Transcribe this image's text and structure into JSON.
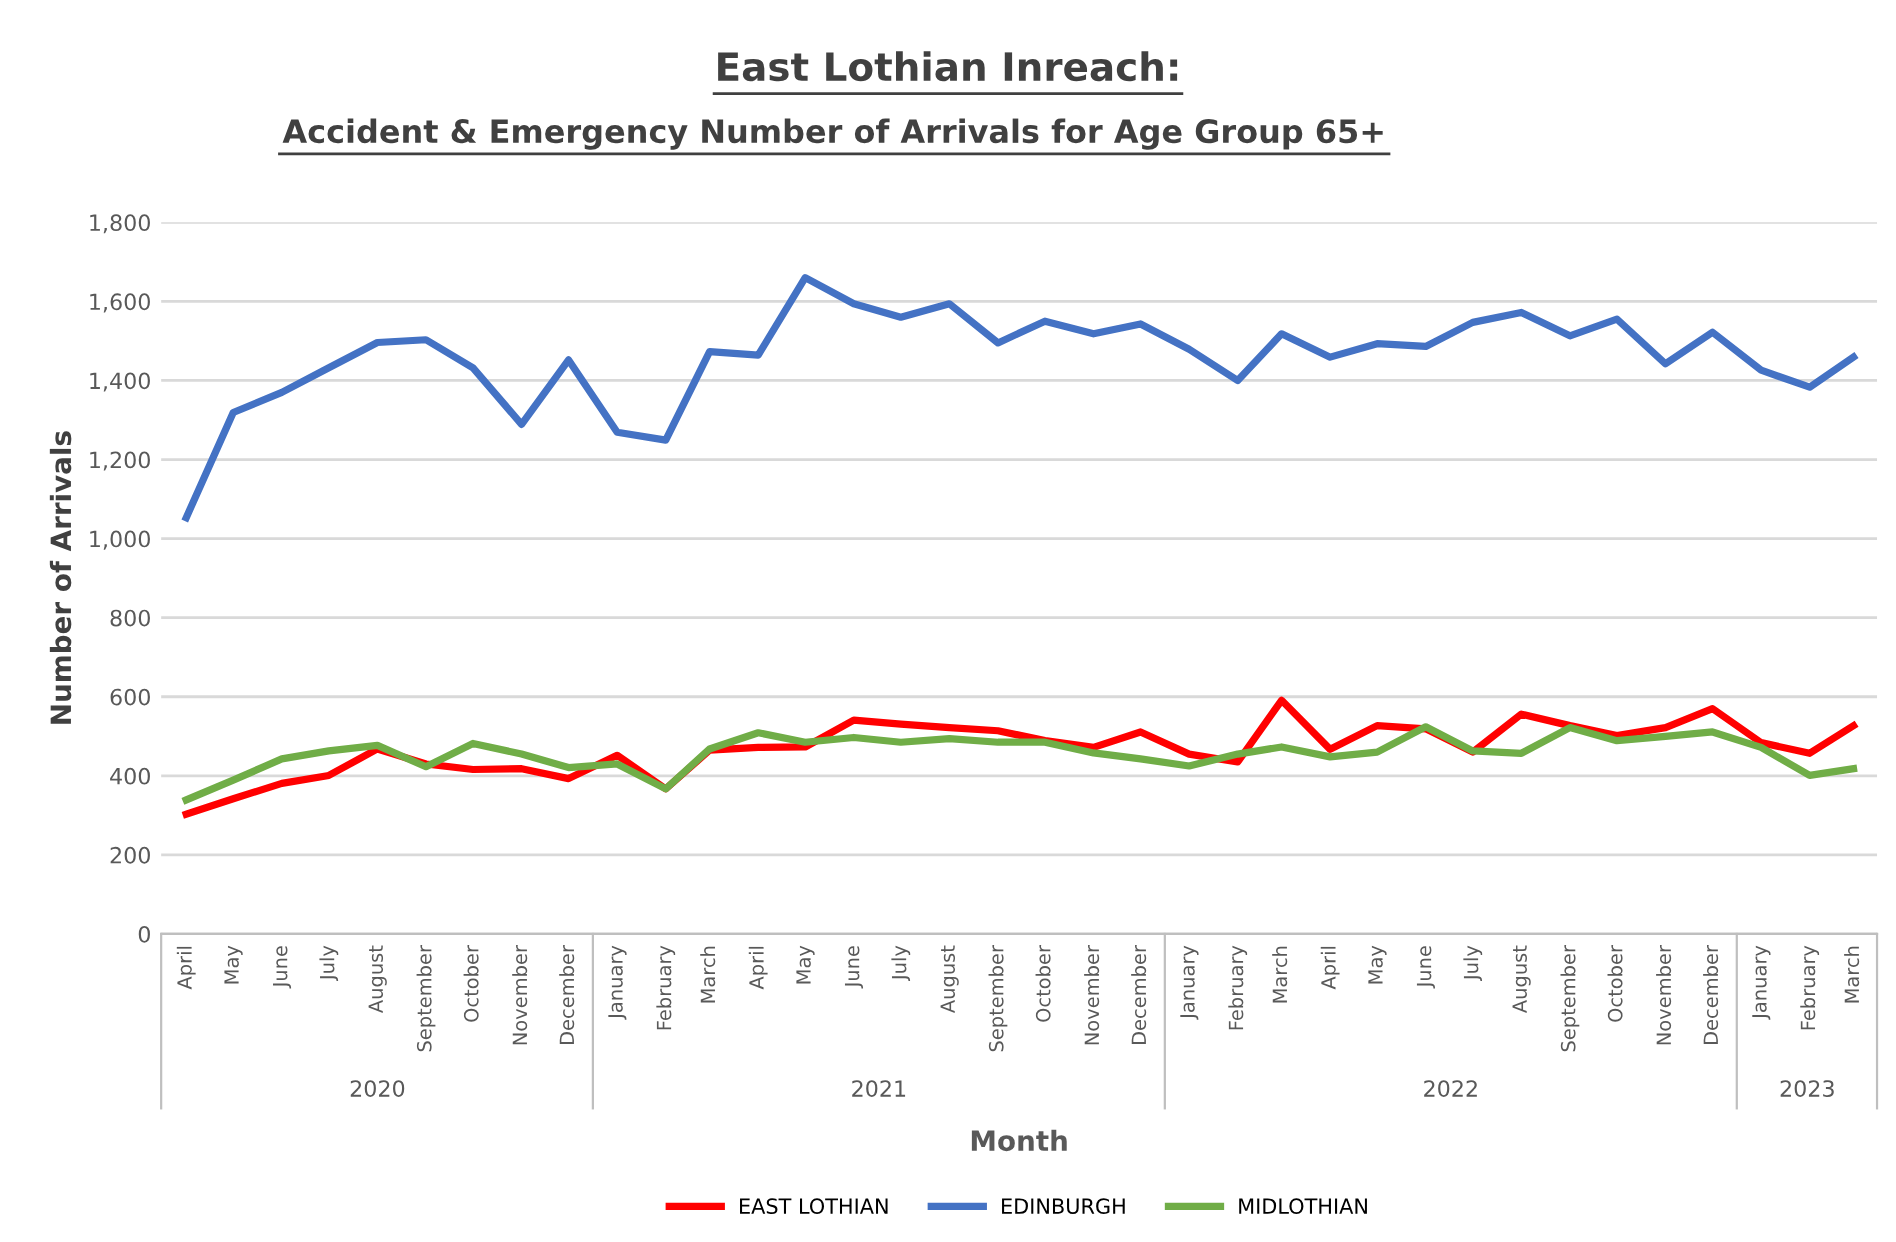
{
  "chart_data": {
    "type": "line",
    "title": "East Lothian Inreach:",
    "subtitle": "Accident & Emergency Number of Arrivals for Age Group 65+",
    "xlabel": "Month",
    "ylabel": "Number of Arrivals",
    "x": [
      "2020-04",
      "2020-05",
      "2020-06",
      "2020-07",
      "2020-08",
      "2020-09",
      "2020-10",
      "2020-11",
      "2020-12",
      "2021-01",
      "2021-02",
      "2021-03",
      "2021-04",
      "2021-05",
      "2021-06",
      "2021-07",
      "2021-08",
      "2021-09",
      "2021-10",
      "2021-11",
      "2021-12",
      "2022-01",
      "2022-02",
      "2022-03",
      "2022-04",
      "2022-05",
      "2022-06",
      "2022-07",
      "2022-08",
      "2022-09",
      "2022-10",
      "2022-11",
      "2022-12",
      "2023-01",
      "2023-02",
      "2023-03"
    ],
    "xlim": [
      "2020-03-16",
      "2023-03-16"
    ],
    "xticks": [
      {
        "value": "2020-04",
        "label": "April"
      },
      {
        "value": "2020-05",
        "label": "May"
      },
      {
        "value": "2020-06",
        "label": "June"
      },
      {
        "value": "2020-07",
        "label": "July"
      },
      {
        "value": "2020-08",
        "label": "August"
      },
      {
        "value": "2020-09",
        "label": "September"
      },
      {
        "value": "2020-10",
        "label": "October"
      },
      {
        "value": "2020-11",
        "label": "November"
      },
      {
        "value": "2020-12",
        "label": "December"
      },
      {
        "value": "2021-01",
        "label": "January"
      },
      {
        "value": "2021-02",
        "label": "February"
      },
      {
        "value": "2021-03",
        "label": "March"
      },
      {
        "value": "2021-04",
        "label": "April"
      },
      {
        "value": "2021-05",
        "label": "May"
      },
      {
        "value": "2021-06",
        "label": "June"
      },
      {
        "value": "2021-07",
        "label": "July"
      },
      {
        "value": "2021-08",
        "label": "August"
      },
      {
        "value": "2021-09",
        "label": "September"
      },
      {
        "value": "2021-10",
        "label": "October"
      },
      {
        "value": "2021-11",
        "label": "November"
      },
      {
        "value": "2021-12",
        "label": "December"
      },
      {
        "value": "2022-01",
        "label": "January"
      },
      {
        "value": "2022-02",
        "label": "February"
      },
      {
        "value": "2022-03",
        "label": "March"
      },
      {
        "value": "2022-04",
        "label": "April"
      },
      {
        "value": "2022-05",
        "label": "May"
      },
      {
        "value": "2022-06",
        "label": "June"
      },
      {
        "value": "2022-07",
        "label": "July"
      },
      {
        "value": "2022-08",
        "label": "August"
      },
      {
        "value": "2022-09",
        "label": "September"
      },
      {
        "value": "2022-10",
        "label": "October"
      },
      {
        "value": "2022-11",
        "label": "November"
      },
      {
        "value": "2022-12",
        "label": "December"
      },
      {
        "value": "2023-01",
        "label": "January"
      },
      {
        "value": "2023-02",
        "label": "February"
      },
      {
        "value": "2023-03",
        "label": "March"
      }
    ],
    "annotations": [
      "2020",
      "2021",
      "2022",
      "2023"
    ],
    "series": [
      {
        "name": "EAST LOTHIAN",
        "color": "#ff0000",
        "values": [
          303,
          342,
          381,
          401,
          468,
          430,
          416,
          418,
          393,
          452,
          367,
          465,
          472,
          473,
          541,
          531,
          522,
          514,
          489,
          472,
          511,
          455,
          435,
          591,
          467,
          527,
          519,
          460,
          556,
          527,
          502,
          522,
          570,
          484,
          457,
          527
        ]
      },
      {
        "name": "EDINBURGH",
        "color": "#4472c4",
        "values": [
          1053,
          1319,
          1370,
          1432,
          1496,
          1503,
          1432,
          1289,
          1452,
          1269,
          1249,
          1473,
          1464,
          1660,
          1594,
          1560,
          1594,
          1495,
          1550,
          1518,
          1543,
          1479,
          1400,
          1518,
          1459,
          1493,
          1486,
          1547,
          1572,
          1513,
          1555,
          1442,
          1522,
          1426,
          1383,
          1459
        ]
      },
      {
        "name": "MIDLOTHIAN",
        "color": "#70ad47",
        "values": [
          339,
          389,
          443,
          463,
          477,
          423,
          482,
          455,
          421,
          430,
          367,
          468,
          509,
          485,
          497,
          485,
          494,
          485,
          485,
          458,
          443,
          425,
          455,
          473,
          448,
          460,
          524,
          463,
          457,
          522,
          489,
          500,
          511,
          472,
          401,
          418
        ]
      }
    ],
    "ylim": [
      0,
      1800
    ],
    "yticks": [
      {
        "value": 0,
        "label": "0"
      },
      {
        "value": 200,
        "label": "200"
      },
      {
        "value": 400,
        "label": "400"
      },
      {
        "value": 600,
        "label": "600"
      },
      {
        "value": 800,
        "label": "800"
      },
      {
        "value": 1000,
        "label": "1,000"
      },
      {
        "value": 1200,
        "label": "1,200"
      },
      {
        "value": 1400,
        "label": "1,400"
      },
      {
        "value": 1600,
        "label": "1,600"
      },
      {
        "value": 1800,
        "label": "1,800"
      }
    ],
    "grid": "y",
    "legend": "bottom",
    "marker": "none",
    "line_style": "solid"
  }
}
